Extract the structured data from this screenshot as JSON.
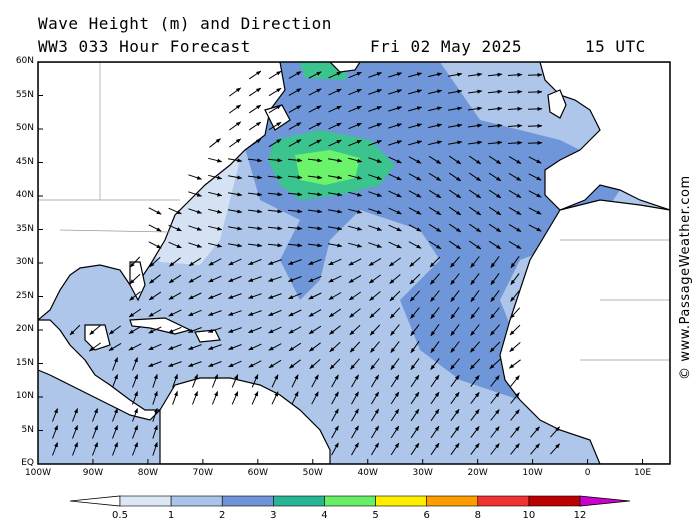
{
  "title": {
    "line1": "Wave Height (m) and Direction",
    "line2": "WW3 033 Hour Forecast",
    "date": "Fri 02 May 2025",
    "time": "15 UTC"
  },
  "credit": "© www.PassageWeather.com",
  "latitude_labels": [
    "60N",
    "55N",
    "50N",
    "45N",
    "40N",
    "35N",
    "30N",
    "25N",
    "20N",
    "15N",
    "10N",
    "5N",
    "EQ"
  ],
  "longitude_labels": [
    "100W",
    "90W",
    "80W",
    "70W",
    "60W",
    "50W",
    "40W",
    "30W",
    "20W",
    "10W",
    "0",
    "10E"
  ],
  "colorbar": {
    "ticks": [
      "0.5",
      "1",
      "2",
      "3",
      "4",
      "5",
      "6",
      "8",
      "10",
      "12"
    ],
    "colors": [
      "#dce6f5",
      "#aac3e8",
      "#6e93d6",
      "#2ab496",
      "#66ee66",
      "#ffee00",
      "#ff9c00",
      "#ee3333",
      "#bb0000",
      "#cc00cc"
    ]
  },
  "colors": {
    "ocean_low": "#aec6ea",
    "ocean_mid": "#6f96d8",
    "ocean_calm": "#d5e2f4",
    "ocean_high": "#3cc48f",
    "ocean_peak": "#6cf36c",
    "land": "#ffffff"
  }
}
